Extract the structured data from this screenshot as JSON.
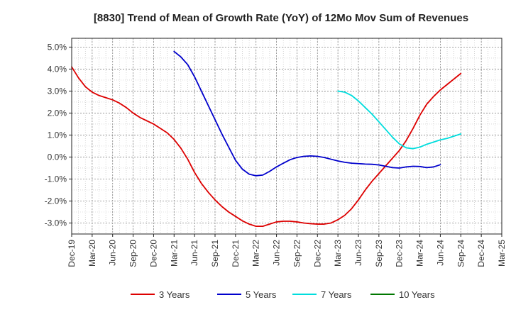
{
  "chart_data": {
    "type": "line",
    "title": "[8830]  Trend of Mean of Growth Rate (YoY) of 12Mo Mov Sum of Revenues",
    "xlabel": "",
    "ylabel": "",
    "ylim": [
      -3.5,
      5.4
    ],
    "yticks": [
      5.0,
      4.0,
      3.0,
      2.0,
      1.0,
      0.0,
      -1.0,
      -2.0,
      -3.0
    ],
    "ytick_labels": [
      "5.0%",
      "4.0%",
      "3.0%",
      "2.0%",
      "1.0%",
      "0.0%",
      "-1.0%",
      "-2.0%",
      "-3.0%"
    ],
    "x_tick_labels": [
      "Dec-19",
      "Mar-20",
      "Jun-20",
      "Sep-20",
      "Dec-20",
      "Mar-21",
      "Jun-21",
      "Sep-21",
      "Dec-21",
      "Mar-22",
      "Jun-22",
      "Sep-22",
      "Dec-22",
      "Mar-23",
      "Jun-23",
      "Sep-23",
      "Dec-23",
      "Mar-24",
      "Jun-24",
      "Sep-24",
      "Dec-24",
      "Mar-25"
    ],
    "x_months_total": 63,
    "grid": true,
    "legend_position": "bottom",
    "series": [
      {
        "name": "3 Years",
        "color": "#dd0000",
        "start_month": 0,
        "values": [
          4.1,
          3.6,
          3.2,
          2.95,
          2.8,
          2.7,
          2.6,
          2.45,
          2.25,
          2.0,
          1.8,
          1.65,
          1.5,
          1.3,
          1.1,
          0.8,
          0.4,
          -0.1,
          -0.7,
          -1.2,
          -1.6,
          -1.95,
          -2.25,
          -2.5,
          -2.7,
          -2.9,
          -3.05,
          -3.15,
          -3.15,
          -3.05,
          -2.95,
          -2.92,
          -2.92,
          -2.95,
          -3.0,
          -3.03,
          -3.05,
          -3.05,
          -3.0,
          -2.85,
          -2.65,
          -2.35,
          -1.95,
          -1.5,
          -1.1,
          -0.75,
          -0.4,
          -0.05,
          0.3,
          0.75,
          1.3,
          1.9,
          2.4,
          2.75,
          3.05,
          3.3,
          3.55,
          3.8
        ]
      },
      {
        "name": "5 Years",
        "color": "#0000cc",
        "start_month": 15,
        "values": [
          4.8,
          4.55,
          4.2,
          3.65,
          3.0,
          2.35,
          1.7,
          1.05,
          0.45,
          -0.15,
          -0.55,
          -0.78,
          -0.85,
          -0.82,
          -0.65,
          -0.45,
          -0.28,
          -0.12,
          -0.02,
          0.03,
          0.05,
          0.03,
          -0.02,
          -0.1,
          -0.18,
          -0.24,
          -0.28,
          -0.3,
          -0.32,
          -0.33,
          -0.36,
          -0.42,
          -0.48,
          -0.5,
          -0.45,
          -0.42,
          -0.43,
          -0.48,
          -0.45,
          -0.35
        ]
      },
      {
        "name": "7 Years",
        "color": "#00dddd",
        "start_month": 39,
        "values": [
          3.0,
          2.95,
          2.8,
          2.55,
          2.25,
          1.95,
          1.6,
          1.25,
          0.9,
          0.6,
          0.42,
          0.38,
          0.45,
          0.58,
          0.68,
          0.78,
          0.85,
          0.95,
          1.05
        ]
      },
      {
        "name": "10 Years",
        "color": "#007700",
        "start_month": 0,
        "values": []
      }
    ]
  }
}
